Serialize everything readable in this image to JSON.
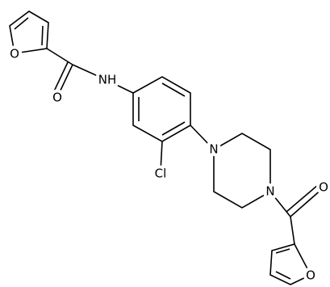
{
  "atoms": [
    {
      "label": "O"
    },
    {
      "label": "O"
    },
    {
      "label": "NH"
    },
    {
      "label": "Cl"
    },
    {
      "label": "N"
    },
    {
      "label": "N"
    },
    {
      "label": "O"
    },
    {
      "label": "O"
    }
  ]
}
